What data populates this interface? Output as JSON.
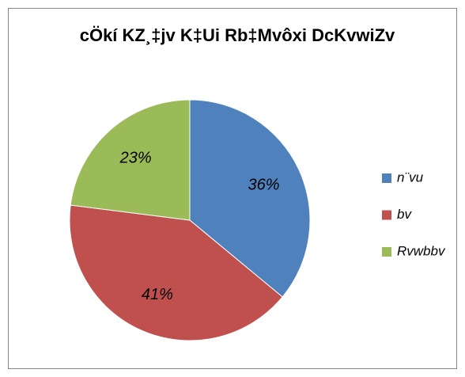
{
  "chart_data": {
    "type": "pie",
    "title": "cÖkí KZ¸‡jv K‡Ui Rb‡Mvôxi DcKvwiZv",
    "categories": [
      "n¨vu",
      "bv",
      "Rvwbbv"
    ],
    "values": [
      36,
      41,
      23
    ],
    "value_labels": [
      "36%",
      "41%",
      "23%"
    ],
    "colors": [
      "#4f81bd",
      "#c0504d",
      "#9bbb59"
    ],
    "legend": "right"
  }
}
